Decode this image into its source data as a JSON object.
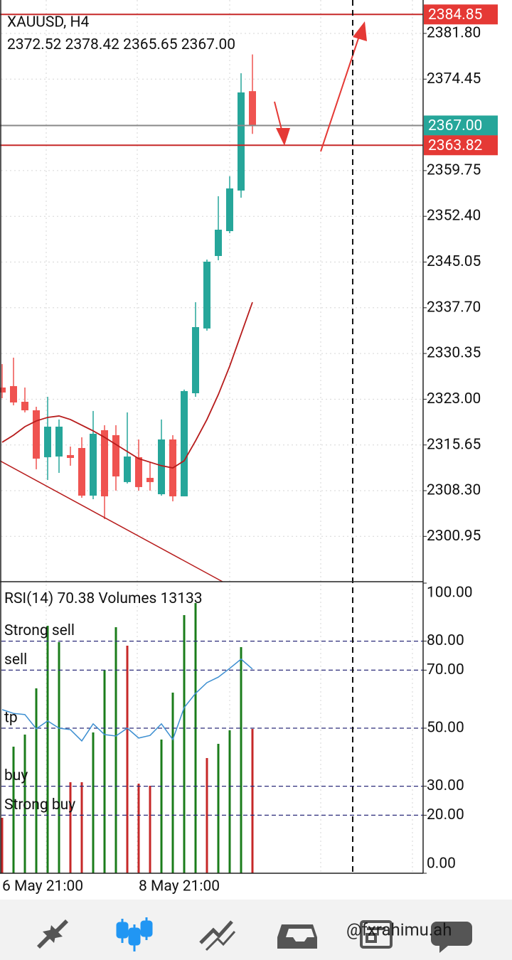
{
  "chart_data": {
    "type": "candlestick",
    "title": "XAUUSD, H4",
    "ohlc_labels": [
      "2372.52",
      "2378.42",
      "2365.65",
      "2367.00"
    ],
    "categories": [
      "6 May 21:00",
      null,
      null,
      null,
      null,
      null,
      null,
      null,
      null,
      null,
      null,
      null,
      "8 May 21:00",
      null,
      null,
      null,
      null,
      null,
      null,
      null,
      null,
      null,
      null
    ],
    "open": [
      2324.88,
      2325.11,
      2322.59,
      2321.22,
      2313.68,
      2313.79,
      2314.02,
      2315.16,
      2307.5,
      2318.02,
      2317.22,
      2309.68,
      2313.68,
      2310.36,
      2307.73,
      2316.53,
      2307.39,
      2323.96,
      2334.37,
      2346.02,
      2350.02,
      2356.54,
      2372.52
    ],
    "high": [
      2328.65,
      2329.68,
      2324.88,
      2321.79,
      2323.39,
      2319.74,
      2315.39,
      2316.88,
      2321.11,
      2318.82,
      2318.82,
      2320.88,
      2316.53,
      2312.88,
      2319.74,
      2317.22,
      2324.54,
      2338.59,
      2345.45,
      2355.63,
      2358.83,
      2375.4,
      2378.42
    ],
    "low": [
      2323.16,
      2322.02,
      2320.88,
      2311.74,
      2310.02,
      2311.16,
      2312.31,
      2307.16,
      2306.93,
      2303.73,
      2308.31,
      2309.45,
      2308.31,
      2308.31,
      2307.5,
      2306.59,
      2307.39,
      2323.39,
      2334.02,
      2345.34,
      2349.68,
      2355.4,
      2365.65
    ],
    "close": [
      2324.08,
      2322.48,
      2321.22,
      2313.45,
      2318.59,
      2318.59,
      2313.56,
      2307.5,
      2317.45,
      2307.39,
      2310.59,
      2313.79,
      2308.88,
      2309.68,
      2316.53,
      2307.39,
      2324.31,
      2334.59,
      2345.11,
      2350.25,
      2356.88,
      2372.31,
      2367.0
    ],
    "up_color": "#26a69a",
    "down_color": "#ef5350",
    "ma": {
      "color": "#b71c1c",
      "values": [
        2316.08,
        2317.22,
        2318.59,
        2319.51,
        2320.08,
        2320.31,
        2319.74,
        2318.82,
        2317.91,
        2316.88,
        2315.73,
        2314.59,
        2313.45,
        2312.88,
        2312.31,
        2311.96,
        2313.11,
        2316.31,
        2319.74,
        2323.74,
        2328.31,
        2333.45,
        2338.59
      ]
    },
    "ylim": [
      2293.67,
      2387.17
    ],
    "yticks": [
      {
        "value": 2381.8,
        "label": "2381.80"
      },
      2374.45,
      2359.75,
      {
        "value": 2352.4,
        "label": "2352.40"
      },
      2345.05,
      {
        "value": 2337.7,
        "label": "2337.70"
      },
      2330.35,
      {
        "value": 2323,
        "label": "2323.00"
      },
      2315.65,
      {
        "value": 2308.3,
        "label": "2308.30"
      },
      2300.95
    ],
    "price_levels": [
      {
        "value": 2384.85,
        "color": "#e53935",
        "line_color": "#c62828"
      },
      {
        "value": 2367,
        "label": "2367.00",
        "color": "#26a69a",
        "line_color": "#888888"
      },
      {
        "value": 2363.82,
        "color": "#e53935",
        "line_color": "#c62828"
      }
    ],
    "rsi": {
      "name": "RSI(14)",
      "color": "#3d8fd1",
      "values": [
        56.4,
        55.1,
        54.7,
        49.8,
        52.5,
        50.0,
        49.5,
        45.6,
        51.5,
        47.8,
        47.3,
        50.0,
        46.6,
        47.5,
        51.5,
        46.1,
        57.1,
        62.0,
        65.7,
        67.6,
        70.6,
        73.8,
        70.38
      ]
    },
    "volumes": {
      "name": "Volumes",
      "values": [
        5046,
        11517,
        12617,
        16822,
        22516,
        21028,
        8282,
        8282,
        12811,
        18504,
        22386,
        20704,
        8152,
        7958,
        12164,
        16434,
        23486,
        24586,
        10481,
        11775,
        13005,
        20575,
        13133
      ],
      "colors": [
        "#c62828",
        "#1b7d1b",
        "#1b7d1b",
        "#1b7d1b",
        "#1b7d1b",
        "#1b7d1b",
        "#c62828",
        "#c62828",
        "#1b7d1b",
        "#1b7d1b",
        "#1b7d1b",
        "#c62828",
        "#c62828",
        "#c62828",
        "#1b7d1b",
        "#1b7d1b",
        "#1b7d1b",
        "#1b7d1b",
        "#c62828",
        "#1b7d1b",
        "#1b7d1b",
        "#1b7d1b",
        "#c62828"
      ]
    },
    "y2lim": [
      0,
      100
    ],
    "y2ticks": [
      {
        "value": 100,
        "label": "100.00"
      },
      {
        "value": 80,
        "label": "80.00"
      },
      {
        "value": 70,
        "label": "70.00"
      },
      {
        "value": 50,
        "label": "50.00"
      },
      {
        "value": 30,
        "label": "30.00"
      },
      {
        "value": 20,
        "label": "20.00"
      },
      {
        "value": 0,
        "label": "0.00"
      }
    ],
    "rsi_levels": [
      {
        "value": 80,
        "name": "Strong sell"
      },
      {
        "value": 70,
        "name": "sell"
      },
      {
        "value": 50,
        "name": "tp"
      },
      {
        "value": 30,
        "name": "buy"
      },
      {
        "value": 20,
        "name": "Strong  buy"
      }
    ],
    "level_color": "#2c2c7a"
  },
  "watermark": "@fxrahimu.ah"
}
